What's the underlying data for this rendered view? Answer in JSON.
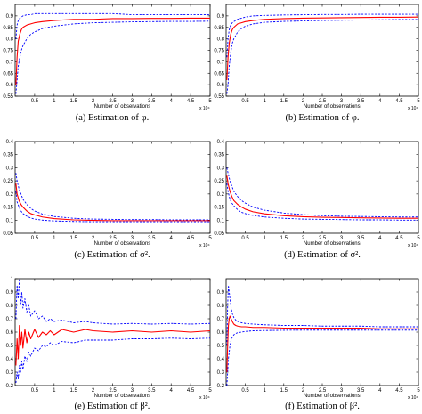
{
  "chart_data": [
    {
      "type": "line",
      "caption": "(a) Estimation of φ.",
      "xlabel": "Number of observations",
      "x_multiplier": "x 10⁴",
      "xlim": [
        0,
        5
      ],
      "ylim": [
        0.55,
        0.95
      ],
      "x_ticks": [
        "0.5",
        "1",
        "1.5",
        "2",
        "2.5",
        "3",
        "3.5",
        "4",
        "4.5",
        "5"
      ],
      "y_ticks": [
        "0.55",
        "0.6",
        "0.65",
        "0.7",
        "0.75",
        "0.8",
        "0.85",
        "0.9"
      ],
      "colors": {
        "estimate": "#ff0000",
        "band": "#0000ff"
      },
      "x": [
        0.02,
        0.05,
        0.08,
        0.12,
        0.16,
        0.2,
        0.3,
        0.4,
        0.5,
        0.7,
        1,
        1.5,
        2,
        2.5,
        3,
        3.5,
        4,
        4.5,
        5
      ],
      "series": [
        {
          "values": [
            0.6,
            0.72,
            0.79,
            0.82,
            0.84,
            0.85,
            0.86,
            0.865,
            0.87,
            0.875,
            0.88,
            0.885,
            0.885,
            0.888,
            0.888,
            0.889,
            0.889,
            0.89,
            0.89
          ]
        },
        {
          "values": [
            0.8,
            0.86,
            0.88,
            0.89,
            0.895,
            0.9,
            0.905,
            0.905,
            0.91,
            0.91,
            0.91,
            0.91,
            0.91,
            0.91,
            0.905,
            0.905,
            0.905,
            0.905,
            0.905
          ]
        },
        {
          "values": [
            0.56,
            0.62,
            0.68,
            0.72,
            0.75,
            0.77,
            0.8,
            0.82,
            0.83,
            0.845,
            0.855,
            0.865,
            0.87,
            0.872,
            0.874,
            0.875,
            0.876,
            0.876,
            0.877
          ]
        }
      ]
    },
    {
      "type": "line",
      "caption": "(b) Estimation of φ.",
      "xlabel": "Number of observations",
      "x_multiplier": "x 10⁴",
      "xlim": [
        0,
        5
      ],
      "ylim": [
        0.55,
        0.95
      ],
      "x_ticks": [
        "0.5",
        "1",
        "1.5",
        "2",
        "2.5",
        "3",
        "3.5",
        "4",
        "4.5",
        "5"
      ],
      "y_ticks": [
        "0.55",
        "0.6",
        "0.65",
        "0.7",
        "0.75",
        "0.8",
        "0.85",
        "0.9"
      ],
      "colors": {
        "estimate": "#ff0000",
        "band": "#0000ff"
      },
      "x": [
        0.02,
        0.05,
        0.08,
        0.12,
        0.16,
        0.2,
        0.3,
        0.4,
        0.5,
        0.7,
        1,
        1.5,
        2,
        2.5,
        3,
        3.5,
        4,
        4.5,
        5
      ],
      "series": [
        {
          "values": [
            0.62,
            0.72,
            0.78,
            0.82,
            0.84,
            0.85,
            0.865,
            0.87,
            0.875,
            0.88,
            0.885,
            0.888,
            0.89,
            0.891,
            0.892,
            0.893,
            0.894,
            0.894,
            0.895
          ]
        },
        {
          "values": [
            0.72,
            0.8,
            0.84,
            0.86,
            0.87,
            0.875,
            0.885,
            0.89,
            0.895,
            0.9,
            0.902,
            0.904,
            0.905,
            0.906,
            0.906,
            0.907,
            0.907,
            0.907,
            0.907
          ]
        },
        {
          "values": [
            0.56,
            0.6,
            0.68,
            0.74,
            0.78,
            0.8,
            0.83,
            0.845,
            0.855,
            0.865,
            0.872,
            0.876,
            0.878,
            0.88,
            0.881,
            0.882,
            0.883,
            0.884,
            0.884
          ]
        }
      ]
    },
    {
      "type": "line",
      "caption": "(c) Estimation of σ².",
      "xlabel": "Number of observations",
      "x_multiplier": "x 10⁴",
      "xlim": [
        0,
        5
      ],
      "ylim": [
        0.05,
        0.4
      ],
      "x_ticks": [
        "0.5",
        "1",
        "1.5",
        "2",
        "2.5",
        "3",
        "3.5",
        "4",
        "4.5",
        "5"
      ],
      "y_ticks": [
        "0.05",
        "0.1",
        "0.15",
        "0.2",
        "0.25",
        "0.3",
        "0.35",
        "0.4"
      ],
      "colors": {
        "estimate": "#ff0000",
        "band": "#0000ff"
      },
      "x": [
        0.02,
        0.05,
        0.1,
        0.15,
        0.2,
        0.3,
        0.4,
        0.5,
        0.7,
        1,
        1.5,
        2,
        2.5,
        3,
        3.5,
        4,
        4.5,
        5
      ],
      "series": [
        {
          "values": [
            0.24,
            0.2,
            0.175,
            0.16,
            0.15,
            0.135,
            0.125,
            0.12,
            0.112,
            0.106,
            0.101,
            0.099,
            0.098,
            0.098,
            0.098,
            0.098,
            0.098,
            0.098
          ]
        },
        {
          "values": [
            0.28,
            0.25,
            0.22,
            0.2,
            0.18,
            0.16,
            0.145,
            0.135,
            0.123,
            0.114,
            0.107,
            0.104,
            0.103,
            0.102,
            0.102,
            0.101,
            0.101,
            0.101
          ]
        },
        {
          "values": [
            0.21,
            0.17,
            0.15,
            0.135,
            0.125,
            0.115,
            0.108,
            0.104,
            0.1,
            0.097,
            0.095,
            0.094,
            0.094,
            0.094,
            0.094,
            0.094,
            0.094,
            0.094
          ]
        }
      ]
    },
    {
      "type": "line",
      "caption": "(d) Estimation of σ².",
      "xlabel": "Number of observations",
      "x_multiplier": "x 10⁴",
      "xlim": [
        0,
        5
      ],
      "ylim": [
        0.05,
        0.4
      ],
      "x_ticks": [
        "0.5",
        "1",
        "1.5",
        "2",
        "2.5",
        "3",
        "3.5",
        "4",
        "4.5",
        "5"
      ],
      "y_ticks": [
        "0.05",
        "0.1",
        "0.15",
        "0.2",
        "0.25",
        "0.3",
        "0.35",
        "0.4"
      ],
      "colors": {
        "estimate": "#ff0000",
        "band": "#0000ff"
      },
      "x": [
        0.02,
        0.05,
        0.1,
        0.15,
        0.2,
        0.3,
        0.4,
        0.5,
        0.7,
        1,
        1.5,
        2,
        2.5,
        3,
        3.5,
        4,
        4.5,
        5
      ],
      "series": [
        {
          "values": [
            0.27,
            0.24,
            0.21,
            0.19,
            0.175,
            0.16,
            0.15,
            0.142,
            0.132,
            0.124,
            0.117,
            0.113,
            0.111,
            0.11,
            0.109,
            0.108,
            0.107,
            0.107
          ]
        },
        {
          "values": [
            0.3,
            0.28,
            0.25,
            0.23,
            0.21,
            0.19,
            0.175,
            0.165,
            0.15,
            0.138,
            0.127,
            0.121,
            0.117,
            0.115,
            0.114,
            0.113,
            0.112,
            0.112
          ]
        },
        {
          "values": [
            0.24,
            0.21,
            0.18,
            0.165,
            0.155,
            0.14,
            0.13,
            0.125,
            0.118,
            0.112,
            0.107,
            0.104,
            0.103,
            0.102,
            0.101,
            0.101,
            0.1,
            0.1
          ]
        }
      ]
    },
    {
      "type": "line",
      "caption": "(e) Estimation of β².",
      "xlabel": "Number of observations",
      "x_multiplier": "x 10⁴",
      "xlim": [
        0,
        5
      ],
      "ylim": [
        0.2,
        1.0
      ],
      "x_ticks": [
        "0.5",
        "1",
        "1.5",
        "2",
        "2.5",
        "3",
        "3.5",
        "4",
        "4.5",
        "5"
      ],
      "y_ticks": [
        "0.2",
        "0.3",
        "0.4",
        "0.5",
        "0.6",
        "0.7",
        "0.8",
        "0.9",
        "1"
      ],
      "colors": {
        "estimate": "#ff0000",
        "band": "#0000ff"
      },
      "x": [
        0.02,
        0.05,
        0.08,
        0.11,
        0.14,
        0.17,
        0.2,
        0.25,
        0.3,
        0.35,
        0.4,
        0.5,
        0.6,
        0.7,
        0.8,
        0.9,
        1,
        1.2,
        1.5,
        1.8,
        2,
        2.5,
        3,
        3.5,
        4,
        4.5,
        5
      ],
      "series": [
        {
          "values": [
            0.35,
            0.55,
            0.4,
            0.65,
            0.5,
            0.6,
            0.48,
            0.62,
            0.52,
            0.6,
            0.55,
            0.62,
            0.56,
            0.6,
            0.58,
            0.61,
            0.58,
            0.62,
            0.6,
            0.62,
            0.61,
            0.6,
            0.61,
            0.6,
            0.61,
            0.6,
            0.61
          ]
        },
        {
          "values": [
            0.7,
            0.95,
            0.85,
            1.0,
            0.8,
            0.9,
            0.78,
            0.85,
            0.75,
            0.8,
            0.72,
            0.76,
            0.7,
            0.72,
            0.68,
            0.7,
            0.68,
            0.69,
            0.67,
            0.68,
            0.67,
            0.66,
            0.665,
            0.66,
            0.665,
            0.66,
            0.665
          ]
        },
        {
          "values": [
            0.22,
            0.3,
            0.25,
            0.35,
            0.3,
            0.38,
            0.32,
            0.42,
            0.38,
            0.45,
            0.42,
            0.48,
            0.46,
            0.5,
            0.49,
            0.52,
            0.5,
            0.53,
            0.52,
            0.54,
            0.54,
            0.54,
            0.55,
            0.55,
            0.555,
            0.55,
            0.555
          ]
        }
      ]
    },
    {
      "type": "line",
      "caption": "(f) Estimation of β².",
      "xlabel": "Number of observations",
      "x_multiplier": "x 10⁴",
      "xlim": [
        0,
        5
      ],
      "ylim": [
        0.2,
        1.0
      ],
      "x_ticks": [
        "0.5",
        "1",
        "1.5",
        "2",
        "2.5",
        "3",
        "3.5",
        "4",
        "4.5",
        "5"
      ],
      "y_ticks": [
        "0.2",
        "0.3",
        "0.4",
        "0.5",
        "0.6",
        "0.7",
        "0.8",
        "0.9"
      ],
      "colors": {
        "estimate": "#ff0000",
        "band": "#0000ff"
      },
      "x": [
        0.02,
        0.04,
        0.06,
        0.08,
        0.1,
        0.13,
        0.16,
        0.2,
        0.25,
        0.3,
        0.4,
        0.5,
        0.7,
        1,
        1.5,
        2,
        2.5,
        3,
        3.5,
        4,
        4.5,
        5
      ],
      "series": [
        {
          "values": [
            0.3,
            0.5,
            0.65,
            0.7,
            0.72,
            0.7,
            0.68,
            0.66,
            0.65,
            0.645,
            0.64,
            0.64,
            0.635,
            0.635,
            0.63,
            0.63,
            0.63,
            0.63,
            0.63,
            0.625,
            0.625,
            0.625
          ]
        },
        {
          "values": [
            0.5,
            0.8,
            0.95,
            0.9,
            0.85,
            0.78,
            0.74,
            0.71,
            0.69,
            0.68,
            0.67,
            0.665,
            0.66,
            0.655,
            0.65,
            0.65,
            0.645,
            0.645,
            0.645,
            0.64,
            0.64,
            0.64
          ]
        },
        {
          "values": [
            0.2,
            0.3,
            0.4,
            0.45,
            0.5,
            0.54,
            0.56,
            0.58,
            0.59,
            0.595,
            0.6,
            0.605,
            0.61,
            0.612,
            0.614,
            0.615,
            0.615,
            0.615,
            0.615,
            0.615,
            0.615,
            0.615
          ]
        }
      ]
    }
  ]
}
